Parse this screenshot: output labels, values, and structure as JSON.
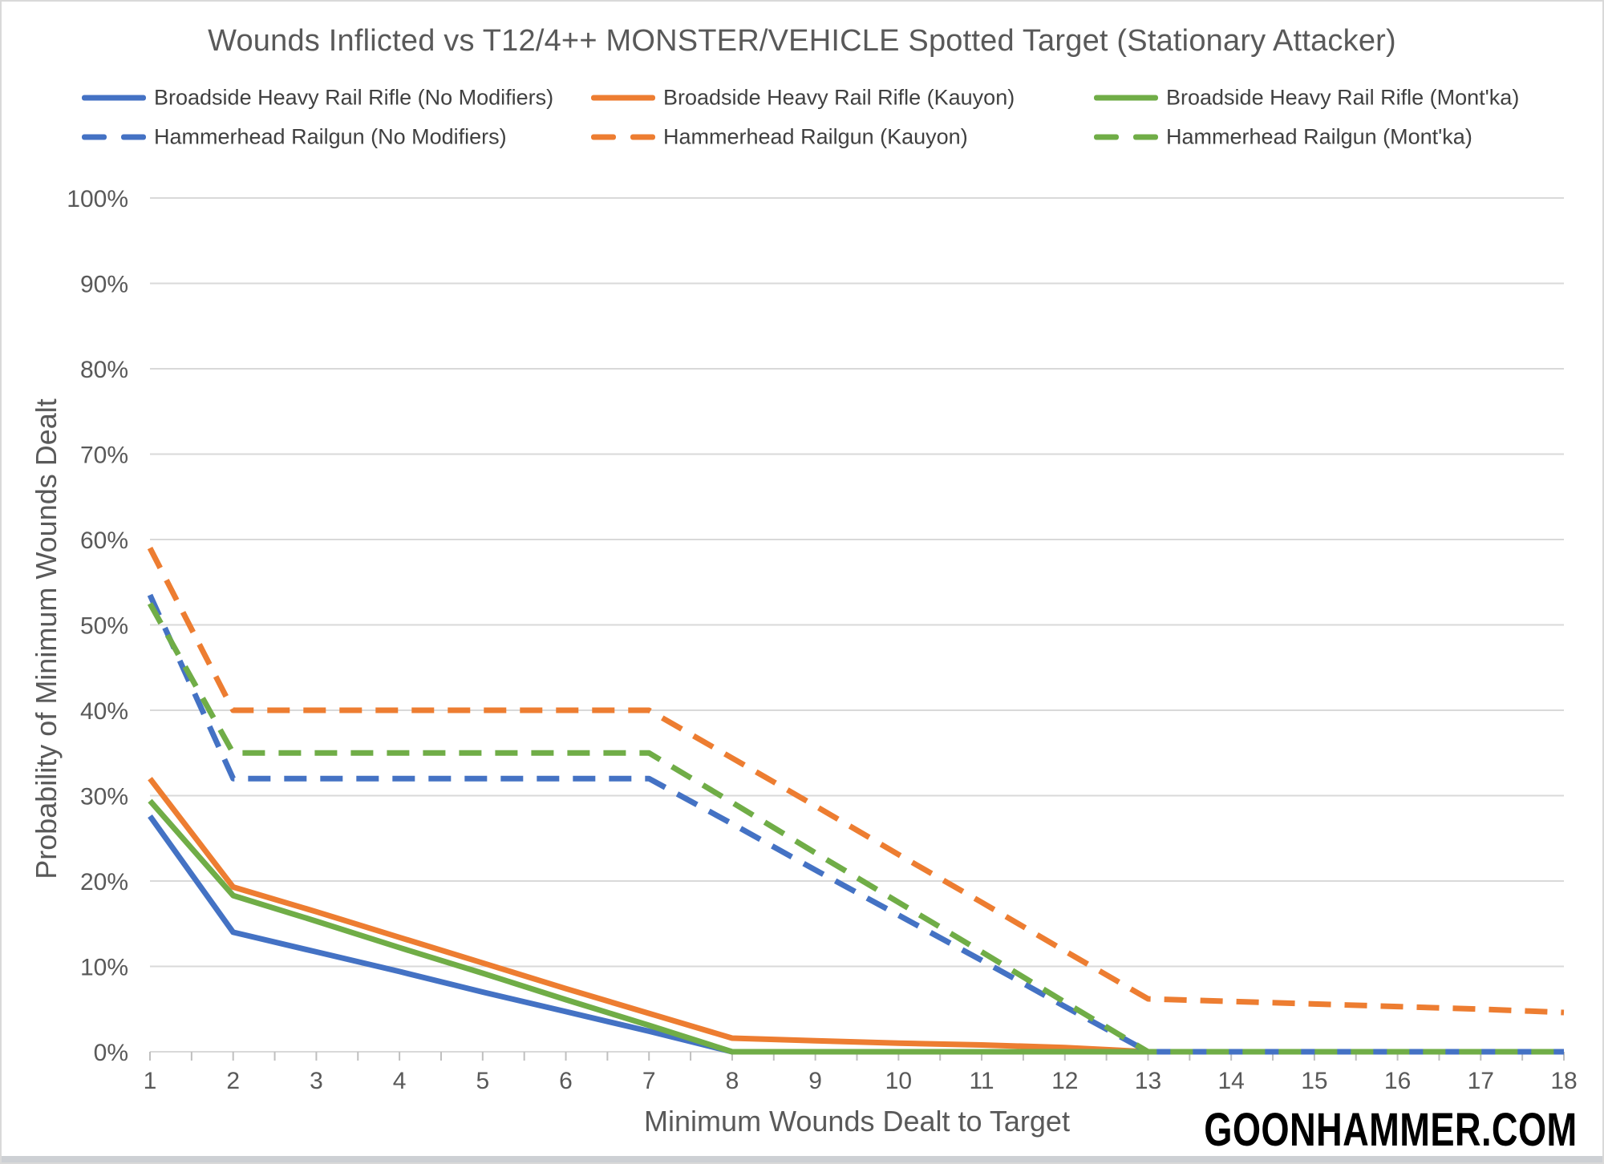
{
  "page": {
    "title": "Wounds Inflicted vs T12/4++ MONSTER/VEHICLE Spotted Target (Stationary Attacker)",
    "watermark": "GOONHAMMER.COM"
  },
  "chart_data": {
    "type": "line",
    "title": "Wounds Inflicted vs T12/4++ MONSTER/VEHICLE Spotted Target (Stationary Attacker)",
    "xlabel": "Minimum Wounds Dealt to Target",
    "ylabel": "Probability of Minimum Wounds Dealt",
    "x": [
      1,
      2,
      3,
      4,
      5,
      6,
      7,
      8,
      9,
      10,
      11,
      12,
      13,
      14,
      15,
      16,
      17,
      18
    ],
    "ylim": [
      0,
      100
    ],
    "yticks": [
      0,
      10,
      20,
      30,
      40,
      50,
      60,
      70,
      80,
      90,
      100
    ],
    "ytick_suffix": "%",
    "grid": "horizontal",
    "legend_position": "top",
    "series": [
      {
        "name": "Broadside Heavy Rail Rifle (No Modifiers)",
        "color": "#4472C4",
        "style": "solid",
        "values": [
          27.6,
          14.0,
          11.7,
          9.4,
          7.0,
          4.7,
          2.4,
          0,
          0,
          0,
          0,
          0,
          0,
          0,
          0,
          0,
          0,
          0
        ]
      },
      {
        "name": "Broadside Heavy Rail Rifle (Kauyon)",
        "color": "#ED7D31",
        "style": "solid",
        "values": [
          32.0,
          19.3,
          16.4,
          13.4,
          10.4,
          7.4,
          4.5,
          1.6,
          1.3,
          1.0,
          0.8,
          0.5,
          0,
          0,
          0,
          0,
          0,
          0
        ]
      },
      {
        "name": "Broadside Heavy Rail Rifle (Mont'ka)",
        "color": "#70AD47",
        "style": "solid",
        "values": [
          29.4,
          18.3,
          15.3,
          12.2,
          9.2,
          6.1,
          3.1,
          0,
          0,
          0,
          0,
          0,
          0,
          0,
          0,
          0,
          0,
          0
        ]
      },
      {
        "name": "Hammerhead Railgun (No Modifiers)",
        "color": "#4472C4",
        "style": "dashed",
        "values": [
          53.5,
          32,
          32,
          32,
          32,
          32,
          32,
          26.7,
          21.3,
          16.0,
          10.7,
          5.3,
          0,
          0,
          0,
          0,
          0,
          0
        ]
      },
      {
        "name": "Hammerhead Railgun (Kauyon)",
        "color": "#ED7D31",
        "style": "dashed",
        "values": [
          59.0,
          40,
          40,
          40,
          40,
          40,
          40,
          34.4,
          28.8,
          23.1,
          17.5,
          11.8,
          6.2,
          5.9,
          5.6,
          5.3,
          5.0,
          4.6
        ]
      },
      {
        "name": "Hammerhead Railgun (Mont'ka)",
        "color": "#70AD47",
        "style": "dashed",
        "values": [
          52.5,
          35,
          35,
          35,
          35,
          35,
          35,
          29.2,
          23.3,
          17.5,
          11.7,
          5.8,
          0,
          0,
          0,
          0,
          0,
          0
        ]
      }
    ]
  },
  "colors": {
    "blue": "#4472C4",
    "orange": "#ED7D31",
    "green": "#70AD47",
    "gridline": "#D9D9D9",
    "tick": "#BFBFBF",
    "title_text": "#595959",
    "axis_text": "#595959",
    "legend_text": "#404040",
    "watermark_text": "#000000",
    "frame_border": "#D9D9D9",
    "bottom_strip": "#CDD0D4"
  }
}
